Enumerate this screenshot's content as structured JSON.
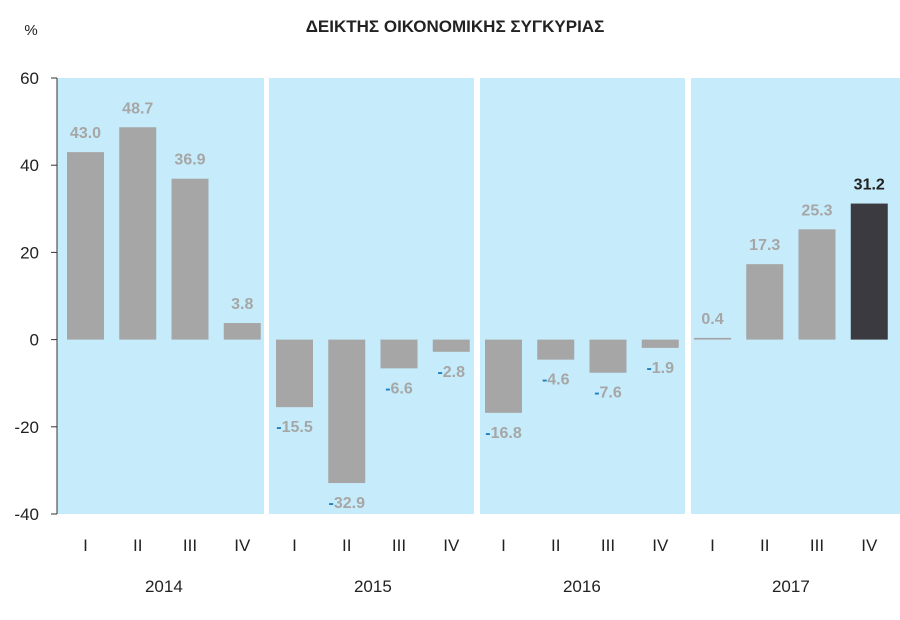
{
  "chart_data": {
    "type": "bar",
    "title": "ΔΕΙΚΤΗΣ ΟΙΚΟΝΟΜΙΚΗΣ ΣΥΓΚΥΡΙΑΣ",
    "ylabel": "%",
    "xlabel": "",
    "ylim": [
      -40,
      60
    ],
    "yticks": [
      60,
      40,
      20,
      0,
      -20,
      -40
    ],
    "groups": [
      "2014",
      "2015",
      "2016",
      "2017"
    ],
    "quarters": [
      "I",
      "II",
      "III",
      "IV"
    ],
    "categories": [
      "2014 I",
      "2014 II",
      "2014 III",
      "2014 IV",
      "2015 I",
      "2015 II",
      "2015 III",
      "2015 IV",
      "2016 I",
      "2016 II",
      "2016 III",
      "2016 IV",
      "2017 I",
      "2017 II",
      "2017 III",
      "2017 IV"
    ],
    "values": [
      43.0,
      48.7,
      36.9,
      3.8,
      -15.5,
      -32.9,
      -6.6,
      -2.8,
      -16.8,
      -4.6,
      -7.6,
      -1.9,
      0.4,
      17.3,
      25.3,
      31.2
    ],
    "labels": [
      "43.0",
      "48.7",
      "36.9",
      "3.8",
      "-15.5",
      "-32.9",
      "-6.6",
      "-2.8",
      "-16.8",
      "-4.6",
      "-7.6",
      "-1.9",
      "0.4",
      "17.3",
      "25.3",
      "31.2"
    ],
    "highlight_index": 15,
    "colors": {
      "bar": "#a6a6a6",
      "highlight": "#3a3a40",
      "panel": "#c6ecfb",
      "negative_sign": "#1f7fc0"
    }
  }
}
